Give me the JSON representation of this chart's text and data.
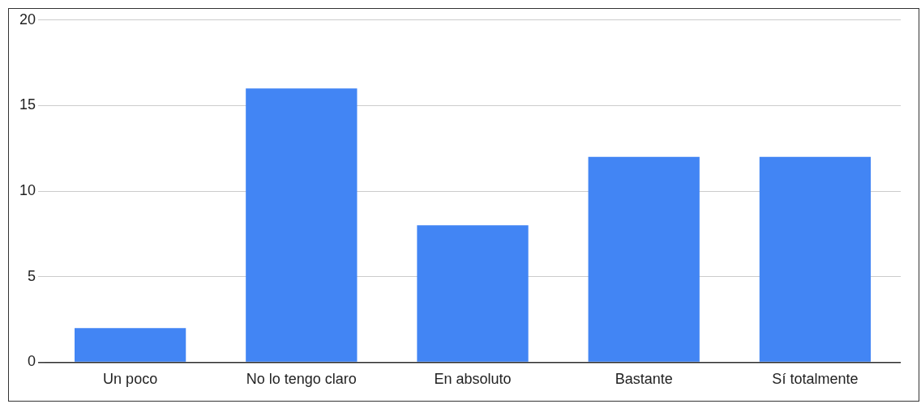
{
  "chart_data": {
    "type": "bar",
    "categories": [
      "Un poco",
      "No lo tengo claro",
      "En absoluto",
      "Bastante",
      "Sí totalmente"
    ],
    "values": [
      2,
      16,
      8,
      12,
      12
    ],
    "color": "#4285f4",
    "ylim": [
      0,
      20
    ],
    "yticks": [
      0,
      5,
      10,
      15,
      20
    ],
    "grid": "y",
    "legend": false
  }
}
